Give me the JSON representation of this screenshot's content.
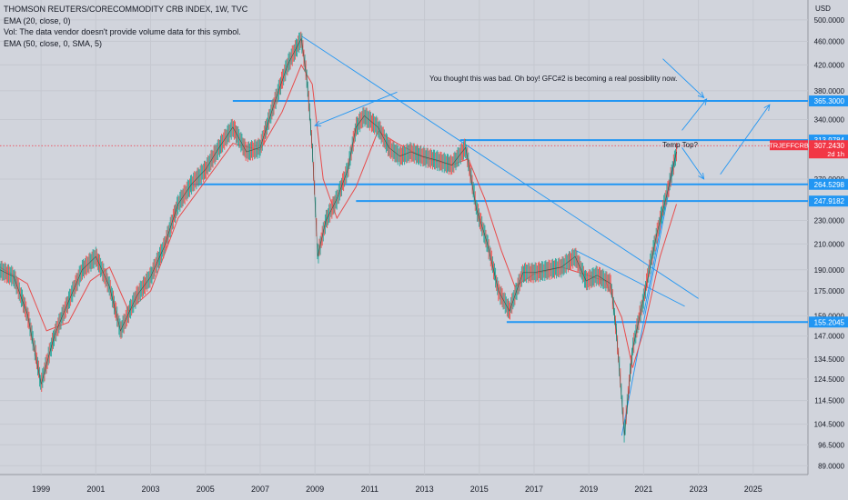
{
  "chart_data": {
    "type": "line",
    "title": "THOMSON REUTERS/CORECOMMODITY CRB INDEX, 1W, TVC",
    "legend": [
      "EMA (20, close, 0)",
      "Vol: The data vendor doesn't provide volume data for this symbol.",
      "EMA (50, close, 0, SMA, 5)"
    ],
    "currency": "USD",
    "x_range": [
      1997.5,
      2027.0
    ],
    "x_ticks": [
      "1999",
      "2001",
      "2003",
      "2005",
      "2007",
      "2009",
      "2011",
      "2013",
      "2015",
      "2017",
      "2019",
      "2021",
      "2023",
      "2025"
    ],
    "y_scale": "log",
    "y_range": [
      86,
      540
    ],
    "y_ticks": [
      "500.0000",
      "460.0000",
      "420.0000",
      "380.0000",
      "340.0000",
      "270.0000",
      "230.0000",
      "210.0000",
      "190.0000",
      "175.0000",
      "159.0000",
      "147.0000",
      "134.5000",
      "124.5000",
      "114.5000",
      "104.5000",
      "96.5000",
      "89.0000"
    ],
    "price_path": {
      "x": [
        1997.5,
        1998.0,
        1998.5,
        1999.0,
        1999.5,
        2000.0,
        2000.5,
        2001.0,
        2001.5,
        2001.9,
        2002.5,
        2003.0,
        2003.5,
        2004.0,
        2004.5,
        2005.0,
        2005.5,
        2006.0,
        2006.5,
        2007.0,
        2007.5,
        2008.0,
        2008.5,
        2008.7,
        2008.9,
        2009.1,
        2009.4,
        2009.8,
        2010.2,
        2010.5,
        2010.8,
        2011.3,
        2011.7,
        2012.1,
        2012.5,
        2012.9,
        2013.5,
        2014.0,
        2014.5,
        2014.9,
        2015.3,
        2015.7,
        2016.1,
        2016.6,
        2017.0,
        2017.5,
        2018.0,
        2018.5,
        2018.9,
        2019.3,
        2019.8,
        2020.0,
        2020.3,
        2020.6,
        2021.0,
        2021.5,
        2021.9,
        2022.2
      ],
      "y": [
        190,
        185,
        160,
        122,
        148,
        168,
        190,
        200,
        178,
        150,
        172,
        185,
        208,
        245,
        265,
        280,
        305,
        330,
        300,
        305,
        360,
        420,
        465,
        400,
        305,
        200,
        230,
        250,
        280,
        330,
        345,
        330,
        305,
        295,
        300,
        295,
        290,
        285,
        305,
        240,
        210,
        175,
        162,
        188,
        188,
        190,
        192,
        200,
        182,
        186,
        180,
        150,
        100,
        140,
        170,
        220,
        260,
        300
      ]
    },
    "ema_path": {
      "x": [
        1997.5,
        1998.5,
        1999.2,
        2000.0,
        2000.8,
        2001.5,
        2002.2,
        2003.0,
        2004.0,
        2005.0,
        2006.0,
        2007.0,
        2007.8,
        2008.5,
        2008.9,
        2009.3,
        2009.8,
        2010.5,
        2011.3,
        2012.0,
        2013.0,
        2014.0,
        2014.6,
        2015.2,
        2015.8,
        2016.3,
        2017.0,
        2018.0,
        2018.8,
        2019.6,
        2020.2,
        2020.6,
        2021.0,
        2021.6,
        2022.2
      ],
      "y": [
        192,
        180,
        150,
        155,
        182,
        192,
        162,
        175,
        232,
        268,
        310,
        302,
        350,
        420,
        390,
        270,
        232,
        262,
        325,
        310,
        293,
        285,
        292,
        250,
        205,
        178,
        187,
        192,
        187,
        182,
        158,
        130,
        150,
        200,
        245
      ]
    },
    "trendlines": [
      {
        "x": [
          2008.5,
          2023.0
        ],
        "y": [
          470,
          170
        ]
      },
      {
        "x": [
          2018.5,
          2022.5
        ],
        "y": [
          205,
          165
        ]
      },
      {
        "x": [
          2020.2,
          2022.2
        ],
        "y": [
          100,
          300
        ]
      },
      {
        "x": [
          2021.0,
          2022.1
        ],
        "y": [
          160,
          290
        ]
      }
    ],
    "levels": [
      {
        "value": 365.3,
        "label": "365.3000",
        "x_start": 2006.0
      },
      {
        "value": 313.9784,
        "label": "313.9784",
        "x_start": 2014.3
      },
      {
        "value": 264.5298,
        "label": "264.5298",
        "x_start": 2004.5
      },
      {
        "value": 247.9182,
        "label": "247.9182",
        "x_start": 2010.5
      },
      {
        "value": 155.2045,
        "label": "155.2045",
        "x_start": 2016.0
      }
    ],
    "current_price": {
      "value": 307.243,
      "label": "307.2430",
      "symbol": "TRJEFFCRB",
      "countdown": "2d 1h"
    },
    "annotations": [
      {
        "text": "You thought this was bad.  Oh boy!  GFC#2 is becoming a real possibility now.",
        "x": 2012.8,
        "y": 440
      },
      {
        "text": "Temp Top?",
        "x": 2021.2,
        "y": 324
      }
    ],
    "arrows": [
      {
        "x": [
          2012.0,
          2009.0
        ],
        "y": [
          378,
          332
        ]
      },
      {
        "x": [
          2021.7,
          2023.2
        ],
        "y": [
          430,
          370
        ]
      },
      {
        "x": [
          2022.4,
          2023.3
        ],
        "y": [
          326,
          368
        ]
      },
      {
        "x": [
          2022.4,
          2023.2
        ],
        "y": [
          305,
          270
        ]
      },
      {
        "x": [
          2023.8,
          2025.6
        ],
        "y": [
          275,
          360
        ]
      }
    ]
  }
}
